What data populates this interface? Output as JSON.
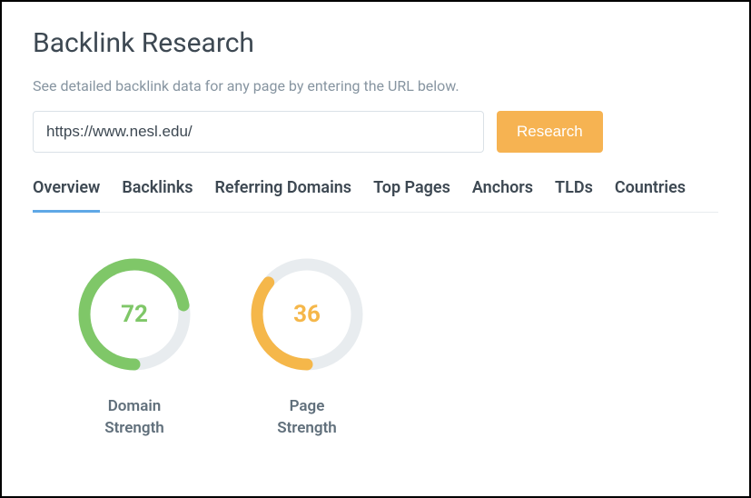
{
  "title": "Backlink Research",
  "description": "See detailed backlink data for any page by entering the URL below.",
  "search": {
    "value": "https://www.nesl.edu/",
    "button_label": "Research"
  },
  "tabs": [
    {
      "label": "Overview",
      "active": true
    },
    {
      "label": "Backlinks",
      "active": false
    },
    {
      "label": "Referring Domains",
      "active": false
    },
    {
      "label": "Top Pages",
      "active": false
    },
    {
      "label": "Anchors",
      "active": false
    },
    {
      "label": "TLDs",
      "active": false
    },
    {
      "label": "Countries",
      "active": false
    }
  ],
  "gauges": [
    {
      "id": "domain-strength",
      "value": 72,
      "max": 100,
      "label": "Domain Strength",
      "arc_color": "#7fc768",
      "track_color": "#e8ecef",
      "value_color": "#7fc768"
    },
    {
      "id": "page-strength",
      "value": 36,
      "max": 100,
      "label": "Page Strength",
      "arc_color": "#f5b74a",
      "track_color": "#e8ecef",
      "value_color": "#f5b74a"
    }
  ],
  "gauge_style": {
    "radius": 55,
    "stroke_width": 13,
    "size": 124
  }
}
